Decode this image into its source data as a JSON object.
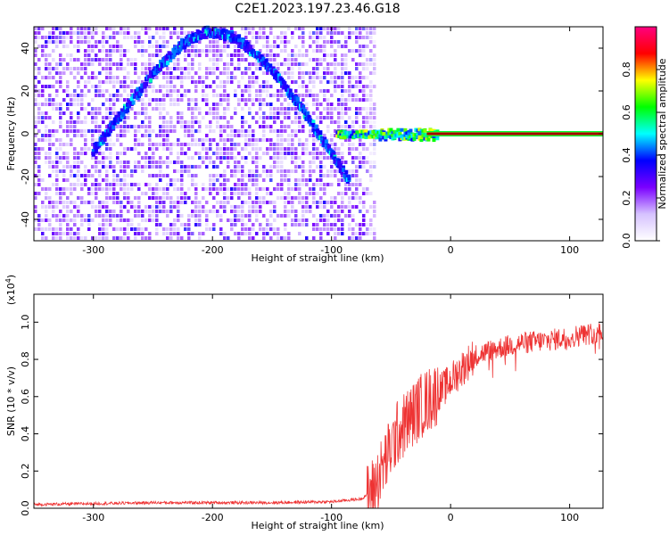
{
  "figure": {
    "title": "C2E1.2023.197.23.46.G18"
  },
  "chart_data": [
    {
      "type": "heatmap",
      "name": "spectrogram",
      "xlabel": "Height of straight line (km)",
      "ylabel": "Frequency (Hz)",
      "xlim": [
        -350,
        128
      ],
      "ylim": [
        -50,
        50
      ],
      "xticks": [
        -300,
        -200,
        -100,
        0,
        100
      ],
      "yticks": [
        -40,
        -20,
        0,
        20,
        40
      ],
      "colorbar": {
        "label": "Normalized spectral amplitude",
        "range": [
          0.0,
          1.0
        ],
        "ticks": [
          0.0,
          0.2,
          0.4,
          0.6,
          0.8
        ],
        "colormap": [
          "#ffffff",
          "#d6c2ff",
          "#7a00ff",
          "#0000ff",
          "#00ffff",
          "#00ff00",
          "#ffff00",
          "#ff0000",
          "#ff0080"
        ]
      },
      "features": {
        "arc": {
          "x": [
            -300,
            -275,
            -250,
            -225,
            -205,
            -180,
            -150,
            -125,
            -105,
            -85
          ],
          "y": [
            -8,
            10,
            28,
            42,
            48,
            45,
            30,
            12,
            -5,
            -22
          ]
        },
        "carrier_line": {
          "x_from": -95,
          "x_to": 128,
          "y": 0
        }
      }
    },
    {
      "type": "line",
      "name": "snr",
      "xlabel": "Height of straight line (km)",
      "ylabel": "SNR (10 * v/v)",
      "ymultiplier": "(x10",
      "ymultiplier_exp": "4",
      "ymultiplier_close": ")",
      "xlim": [
        -350,
        128
      ],
      "ylim": [
        0.0,
        1.15
      ],
      "xticks": [
        -300,
        -200,
        -100,
        0,
        100
      ],
      "yticks": [
        0.0,
        0.2,
        0.4,
        0.6,
        0.8,
        1.0
      ],
      "color": "#ee3333",
      "series": [
        {
          "x": [
            -350,
            -300,
            -250,
            -200,
            -150,
            -100,
            -75,
            -65,
            -55,
            -45,
            -35,
            -25,
            -15,
            -5,
            5,
            20,
            40,
            60,
            80,
            100,
            128
          ],
          "y": [
            0.02,
            0.025,
            0.03,
            0.03,
            0.03,
            0.035,
            0.05,
            0.1,
            0.25,
            0.4,
            0.48,
            0.55,
            0.6,
            0.65,
            0.72,
            0.82,
            0.86,
            0.89,
            0.9,
            0.92,
            0.95
          ]
        }
      ]
    }
  ]
}
